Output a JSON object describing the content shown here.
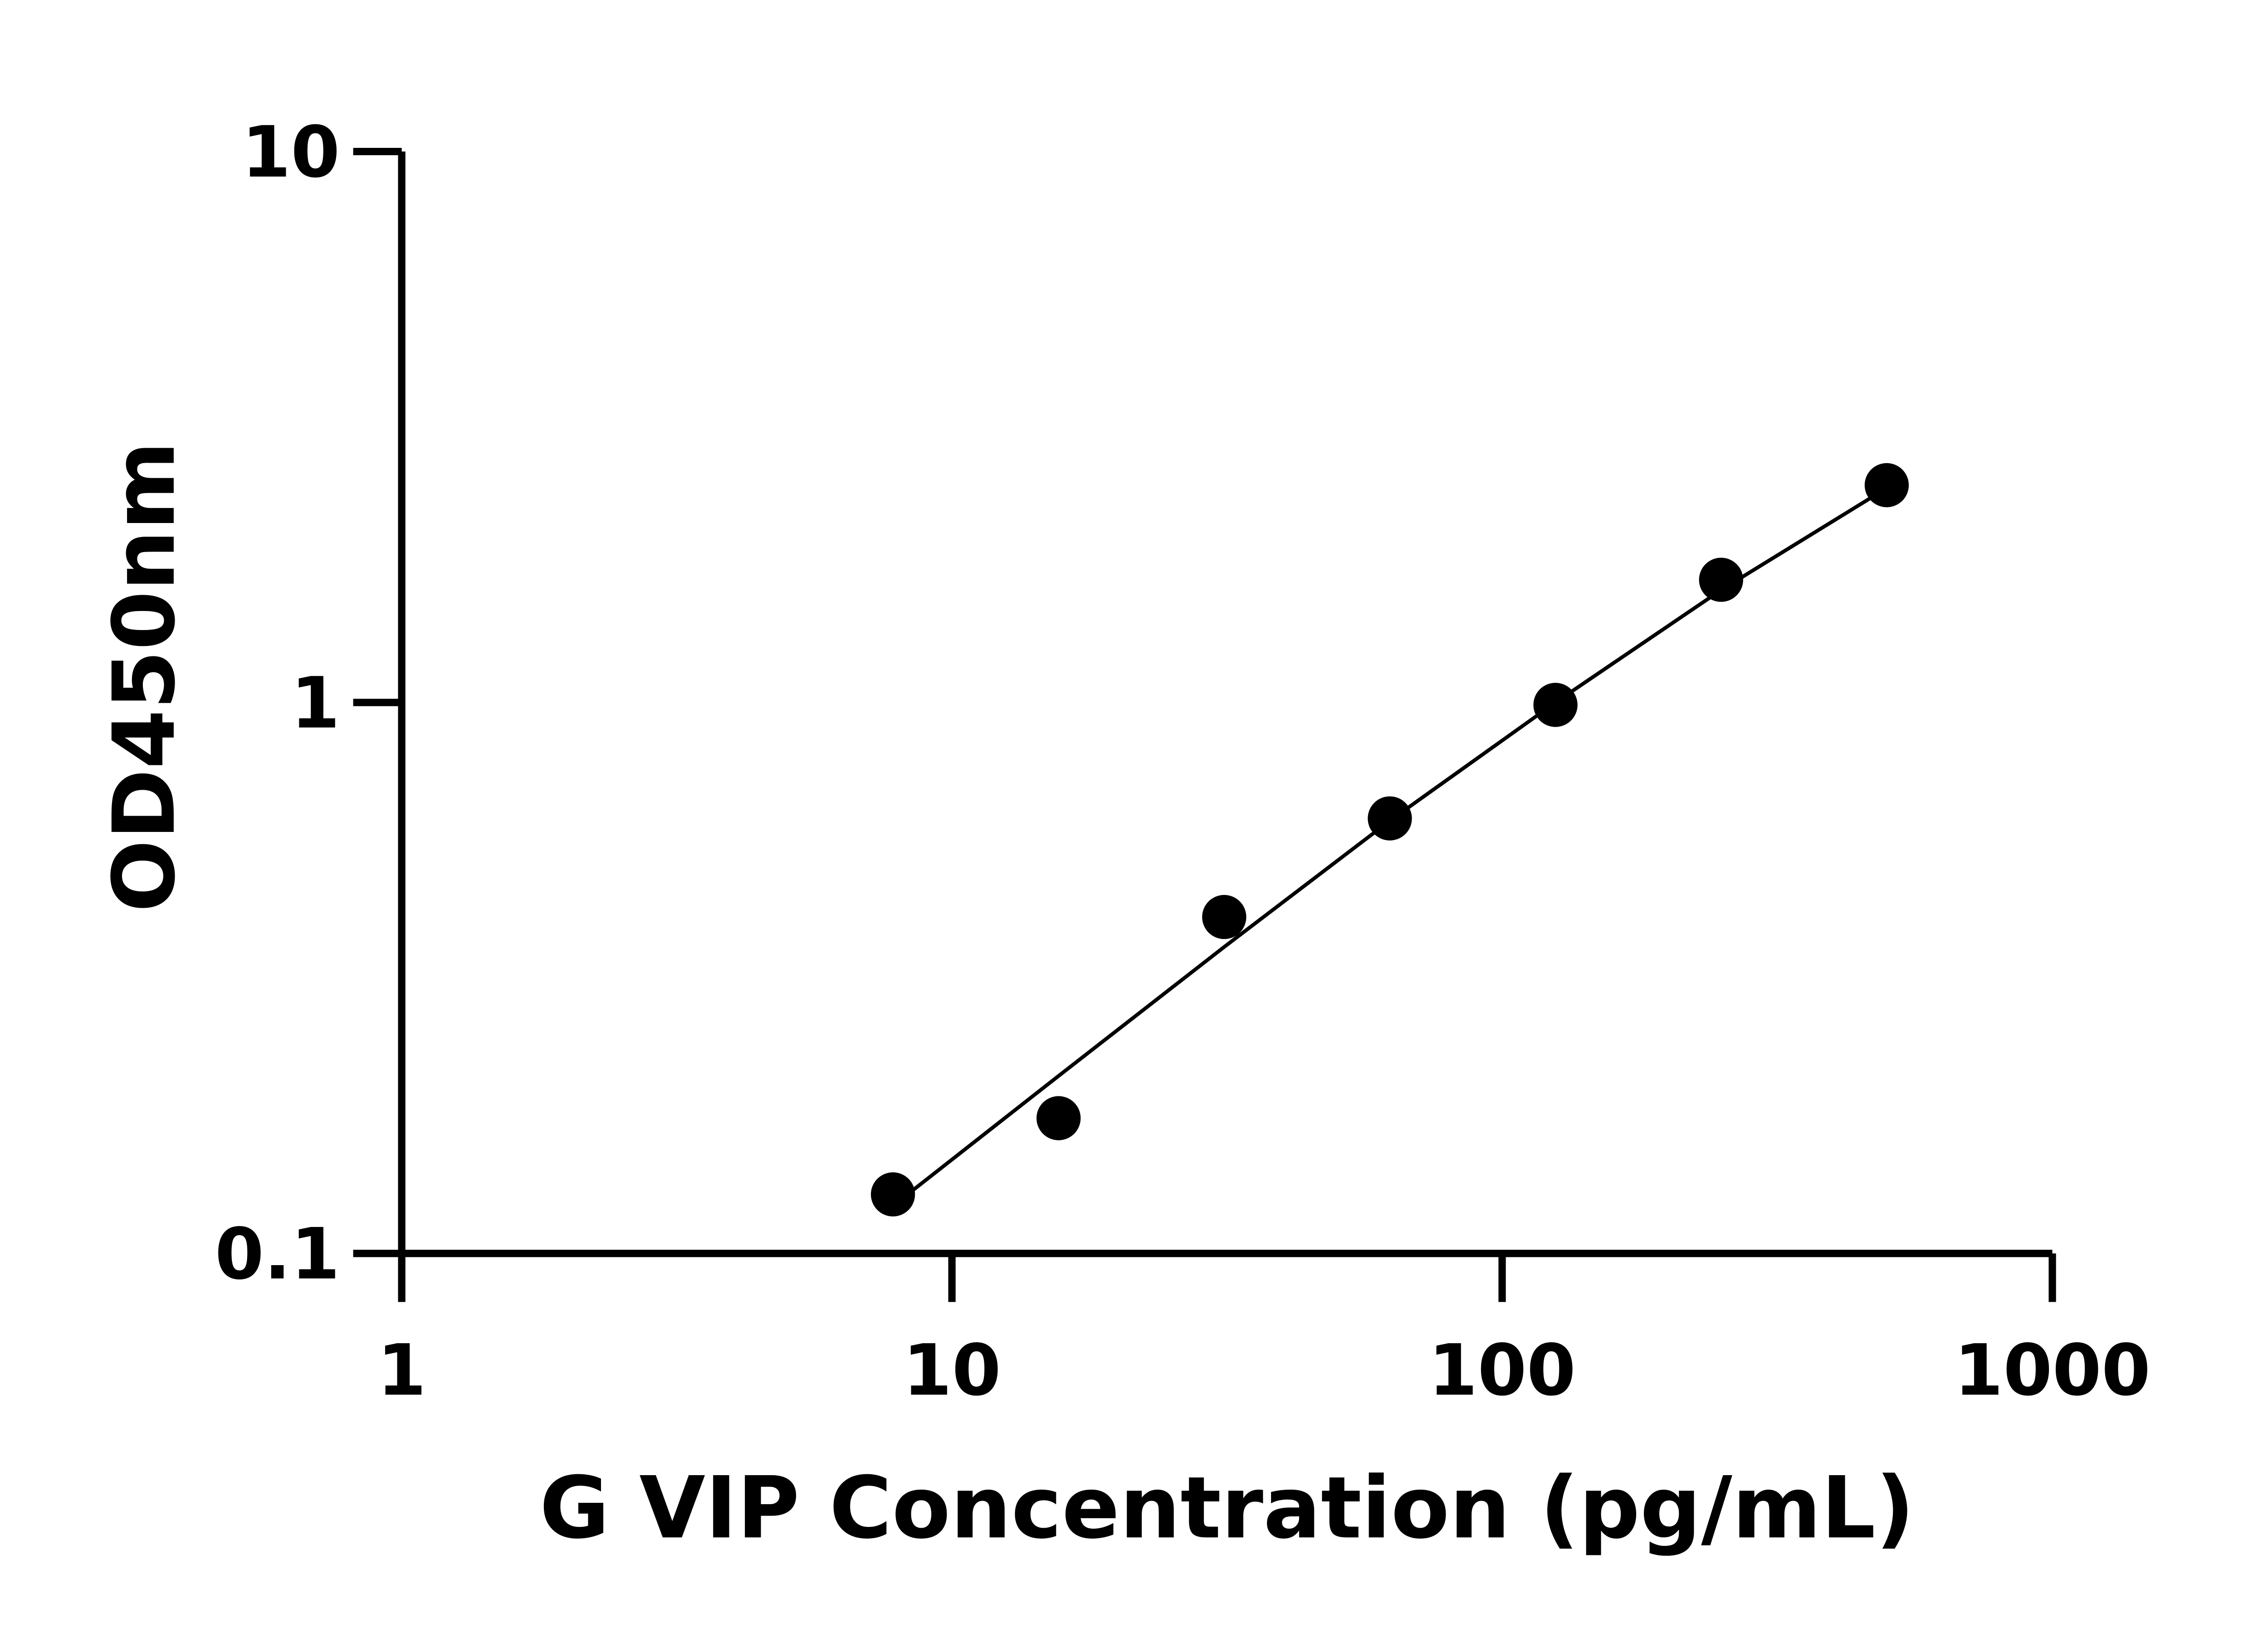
{
  "chart_data": {
    "type": "scatter",
    "title": "",
    "xlabel": "G VIP Concentration (pg/mL)",
    "ylabel": "OD450nm",
    "xscale": "log",
    "yscale": "log",
    "xlim": [
      1,
      1000
    ],
    "ylim": [
      0.1,
      10
    ],
    "xticks": [
      "1",
      "10",
      "100",
      "1000"
    ],
    "yticks": [
      "0.1",
      "1",
      "10"
    ],
    "grid": false,
    "legend": "none",
    "marker_color": "#000000",
    "line_color": "#000000",
    "points": {
      "x": [
        7.8125,
        15.625,
        31.25,
        62.5,
        125,
        250,
        500
      ],
      "y": [
        0.128,
        0.176,
        0.408,
        0.616,
        0.99,
        1.67,
        2.48
      ]
    },
    "fit_line": {
      "x": [
        7.8125,
        15.625,
        31.25,
        62.5,
        125,
        250,
        500
      ],
      "y": [
        0.122,
        0.21,
        0.36,
        0.61,
        1.0,
        1.6,
        2.45
      ]
    }
  }
}
